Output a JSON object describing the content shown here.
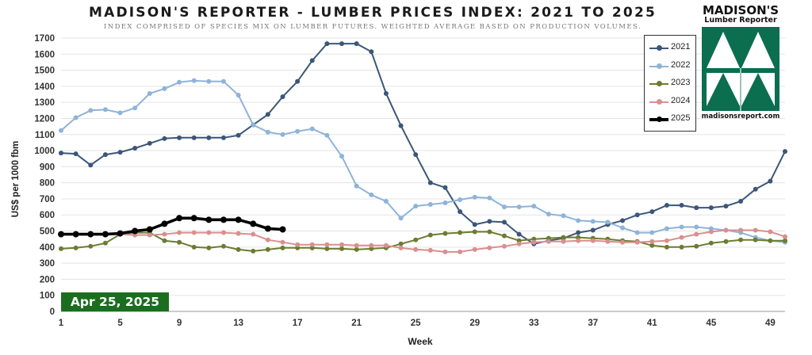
{
  "header": {
    "title": "MADISON'S REPORTER - LUMBER PRICES INDEX: 2021 TO 2025",
    "subtitle": "INDEX COMPRISED OF SPECIES MIX ON LUMBER FUTURES. WEIGHTED AVERAGE BASED ON PRODUCTION VOLUMES."
  },
  "logo": {
    "line1": "MADISON'S",
    "line2": "Lumber Reporter",
    "url": "madisonsreport.com",
    "colors": {
      "green": "#0b6e4f"
    }
  },
  "date_badge": {
    "text": "Apr 25, 2025",
    "color": "#1b6e1f"
  },
  "chart_data": {
    "type": "line",
    "title": "MADISON'S REPORTER - LUMBER PRICES INDEX: 2021 TO 2025",
    "xlabel": "Week",
    "ylabel": "US$ per 1000 fbm",
    "xlim": [
      1,
      50
    ],
    "ylim": [
      0,
      1700
    ],
    "xticks": [
      1,
      5,
      9,
      13,
      17,
      21,
      25,
      29,
      33,
      37,
      41,
      45,
      49
    ],
    "yticks": [
      0,
      100,
      200,
      300,
      400,
      500,
      600,
      700,
      800,
      900,
      1000,
      1100,
      1200,
      1300,
      1400,
      1500,
      1600,
      1700
    ],
    "grid": true,
    "legend_position": "top-right",
    "series": [
      {
        "name": "2021",
        "color": "#3b5678",
        "x": [
          1,
          2,
          3,
          4,
          5,
          6,
          7,
          8,
          9,
          10,
          11,
          12,
          13,
          14,
          15,
          16,
          17,
          18,
          19,
          20,
          21,
          22,
          23,
          24,
          25,
          26,
          27,
          28,
          29,
          30,
          31,
          32,
          33,
          34,
          35,
          36,
          37,
          38,
          39,
          40,
          41,
          42,
          43,
          44,
          45,
          46,
          47,
          48,
          49,
          50
        ],
        "values": [
          985,
          980,
          910,
          975,
          990,
          1015,
          1045,
          1075,
          1080,
          1080,
          1080,
          1080,
          1095,
          1160,
          1225,
          1335,
          1430,
          1560,
          1665,
          1665,
          1665,
          1615,
          1355,
          1155,
          975,
          800,
          770,
          620,
          540,
          560,
          555,
          480,
          420,
          440,
          455,
          490,
          505,
          540,
          565,
          600,
          620,
          660,
          660,
          645,
          645,
          655,
          685,
          760,
          810,
          995
        ]
      },
      {
        "name": "2022",
        "color": "#8fb3d9",
        "x": [
          1,
          2,
          3,
          4,
          5,
          6,
          7,
          8,
          9,
          10,
          11,
          12,
          13,
          14,
          15,
          16,
          17,
          18,
          19,
          20,
          21,
          22,
          23,
          24,
          25,
          26,
          27,
          28,
          29,
          30,
          31,
          32,
          33,
          34,
          35,
          36,
          37,
          38,
          39,
          40,
          41,
          42,
          43,
          44,
          45,
          46,
          47,
          48,
          49,
          50
        ],
        "values": [
          1125,
          1205,
          1250,
          1255,
          1235,
          1265,
          1355,
          1385,
          1425,
          1435,
          1430,
          1430,
          1345,
          1160,
          1115,
          1100,
          1120,
          1135,
          1095,
          965,
          780,
          725,
          685,
          580,
          655,
          665,
          675,
          695,
          710,
          705,
          650,
          650,
          655,
          605,
          595,
          565,
          560,
          555,
          520,
          490,
          490,
          515,
          525,
          525,
          515,
          505,
          490,
          460,
          440,
          430
        ]
      },
      {
        "name": "2023",
        "color": "#6b7c31",
        "x": [
          1,
          2,
          3,
          4,
          5,
          6,
          7,
          8,
          9,
          10,
          11,
          12,
          13,
          14,
          15,
          16,
          17,
          18,
          19,
          20,
          21,
          22,
          23,
          24,
          25,
          26,
          27,
          28,
          29,
          30,
          31,
          32,
          33,
          34,
          35,
          36,
          37,
          38,
          39,
          40,
          41,
          42,
          43,
          44,
          45,
          46,
          47,
          48,
          49,
          50
        ],
        "values": [
          390,
          395,
          405,
          425,
          480,
          490,
          490,
          440,
          430,
          400,
          395,
          405,
          385,
          375,
          385,
          395,
          395,
          395,
          390,
          390,
          385,
          390,
          395,
          420,
          445,
          475,
          485,
          490,
          495,
          495,
          470,
          440,
          450,
          455,
          460,
          460,
          455,
          450,
          440,
          435,
          410,
          400,
          400,
          405,
          425,
          435,
          445,
          445,
          440,
          440
        ]
      },
      {
        "name": "2024",
        "color": "#d98f8f",
        "x": [
          1,
          2,
          3,
          4,
          5,
          6,
          7,
          8,
          9,
          10,
          11,
          12,
          13,
          14,
          15,
          16,
          17,
          18,
          19,
          20,
          21,
          22,
          23,
          24,
          25,
          26,
          27,
          28,
          29,
          30,
          31,
          32,
          33,
          34,
          35,
          36,
          37,
          38,
          39,
          40,
          41,
          42,
          43,
          44,
          45,
          46,
          47,
          48,
          49,
          50
        ],
        "values": [
          480,
          480,
          480,
          480,
          480,
          475,
          475,
          480,
          490,
          490,
          490,
          490,
          485,
          480,
          445,
          430,
          415,
          415,
          415,
          415,
          410,
          410,
          410,
          395,
          385,
          380,
          370,
          370,
          385,
          395,
          405,
          420,
          430,
          435,
          435,
          440,
          440,
          435,
          430,
          430,
          435,
          440,
          460,
          480,
          495,
          505,
          505,
          505,
          495,
          465
        ]
      },
      {
        "name": "2025",
        "color": "#000000",
        "x": [
          1,
          2,
          3,
          4,
          5,
          6,
          7,
          8,
          9,
          10,
          11,
          12,
          13,
          14,
          15,
          16
        ],
        "values": [
          480,
          480,
          480,
          480,
          485,
          500,
          510,
          545,
          580,
          580,
          570,
          570,
          570,
          545,
          515,
          510
        ]
      }
    ]
  },
  "legend": {
    "items": [
      {
        "label": "2021",
        "color": "#3b5678"
      },
      {
        "label": "2022",
        "color": "#8fb3d9"
      },
      {
        "label": "2023",
        "color": "#6b7c31"
      },
      {
        "label": "2024",
        "color": "#d98f8f"
      },
      {
        "label": "2025",
        "color": "#000000"
      }
    ]
  }
}
